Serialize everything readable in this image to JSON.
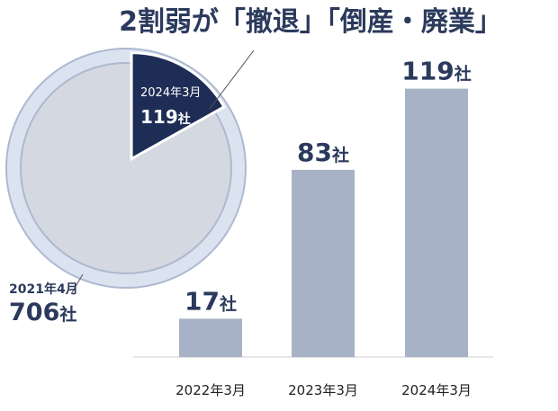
{
  "headline": "2割弱が「撤退」「倒産・廃業」",
  "colors": {
    "bar": "#a8b2c6",
    "headline": "#2b3a5c",
    "pie_ring": "#dbe3f1",
    "pie_ring_edge": "#aeb9cf",
    "pie_rest": "#d4d8e0",
    "pie_slice": "#1e2d55"
  },
  "pie": {
    "total_period": "2021年4月",
    "total_value": "706",
    "total_unit": "社",
    "slice_period": "2024年3月",
    "slice_value": "119",
    "slice_unit": "社"
  },
  "chart_data": [
    {
      "type": "pie",
      "total": 706,
      "slices": [
        {
          "label": "2024年3月",
          "value": 119
        },
        {
          "value": 587
        }
      ]
    },
    {
      "type": "bar",
      "categories": [
        "2022年3月",
        "2023年3月",
        "2024年3月"
      ],
      "values": [
        17,
        83,
        119
      ],
      "value_unit": "社",
      "ylim": [
        0,
        128
      ],
      "grid": false
    }
  ]
}
